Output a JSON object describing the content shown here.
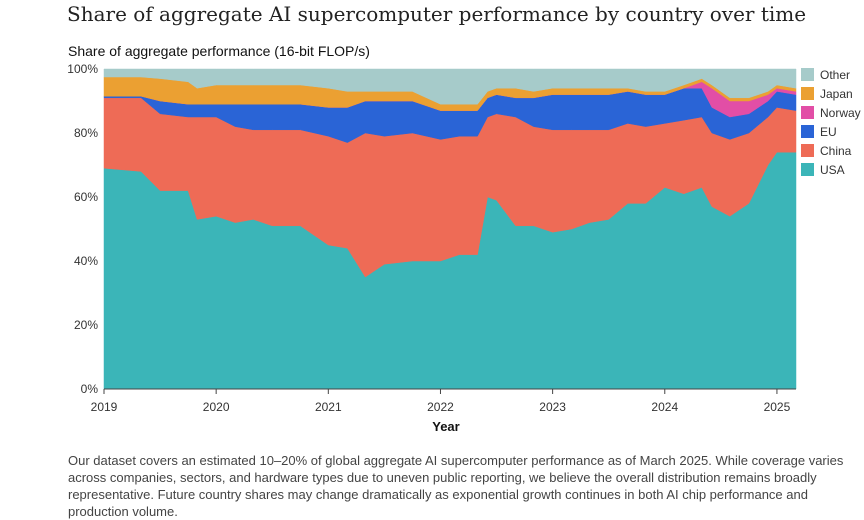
{
  "title": "Share of aggregate AI supercomputer performance by country over time",
  "caption": "Our dataset covers an estimated 10–20% of global aggregate AI supercomputer performance as of March 2025. While coverage varies across companies, sectors, and hardware types due to uneven public reporting, we believe the overall distribution remains broadly representative. Future country shares may change dramatically as exponential growth continues in both AI chip performance and production volume.",
  "chart_data": {
    "type": "area",
    "stacked": true,
    "title": "Share of aggregate performance (16-bit FLOP/s)",
    "xlabel": "Year",
    "ylabel": "",
    "xlim": [
      2019.0,
      2025.17
    ],
    "ylim": [
      0,
      100
    ],
    "x_ticks": [
      2019,
      2020,
      2021,
      2022,
      2023,
      2024,
      2025
    ],
    "x_tick_labels": [
      "2019",
      "2020",
      "2021",
      "2022",
      "2023",
      "2024",
      "2025"
    ],
    "y_ticks": [
      0,
      20,
      40,
      60,
      80,
      100
    ],
    "y_tick_labels": [
      "0%",
      "20%",
      "40%",
      "60%",
      "80%",
      "100%"
    ],
    "legend_position": "right",
    "x": [
      2019.0,
      2019.33,
      2019.5,
      2019.75,
      2019.83,
      2020.0,
      2020.17,
      2020.33,
      2020.5,
      2020.75,
      2021.0,
      2021.17,
      2021.33,
      2021.5,
      2021.75,
      2022.0,
      2022.17,
      2022.33,
      2022.42,
      2022.5,
      2022.67,
      2022.83,
      2023.0,
      2023.17,
      2023.33,
      2023.5,
      2023.67,
      2023.83,
      2024.0,
      2024.17,
      2024.33,
      2024.42,
      2024.58,
      2024.75,
      2024.92,
      2025.0,
      2025.17
    ],
    "series": [
      {
        "name": "USA",
        "color": "#3bb5b8",
        "values": [
          69,
          68,
          62,
          62,
          53,
          54,
          52,
          53,
          51,
          51,
          45,
          44,
          35,
          39,
          40,
          40,
          42,
          42,
          60,
          59,
          51,
          51,
          49,
          50,
          52,
          53,
          58,
          58,
          63,
          61,
          63,
          57,
          54,
          58,
          70,
          74,
          74
        ]
      },
      {
        "name": "China",
        "color": "#ee6b56",
        "values": [
          22,
          23,
          24,
          23,
          32,
          31,
          30,
          28,
          30,
          30,
          34,
          33,
          45,
          40,
          40,
          38,
          37,
          37,
          25,
          27,
          34,
          31,
          32,
          31,
          29,
          28,
          25,
          24,
          20,
          23,
          22,
          23,
          24,
          22,
          15,
          14,
          13
        ]
      },
      {
        "name": "EU",
        "color": "#2a64d6",
        "values": [
          0.5,
          0.5,
          4,
          4,
          4,
          4,
          7,
          8,
          8,
          8,
          9,
          11,
          10,
          11,
          10,
          9,
          8,
          8,
          6,
          6,
          6,
          9,
          11,
          11,
          11,
          11,
          10,
          10,
          9,
          10,
          9,
          8,
          7,
          6,
          5,
          5,
          5
        ]
      },
      {
        "name": "Norway",
        "color": "#e24ea6",
        "values": [
          0,
          0,
          0,
          0,
          0,
          0,
          0,
          0,
          0,
          0,
          0,
          0,
          0,
          0,
          0,
          0,
          0,
          0,
          0,
          0,
          0,
          0,
          0,
          0,
          0,
          0,
          0,
          0,
          0,
          0,
          2,
          6,
          5,
          4,
          2,
          1,
          1
        ]
      },
      {
        "name": "Japan",
        "color": "#eba032",
        "values": [
          6,
          6,
          7,
          7,
          5,
          6,
          6,
          6,
          6,
          6,
          6,
          5,
          3,
          3,
          3,
          2,
          2,
          2,
          2,
          2,
          3,
          2,
          2,
          2,
          2,
          2,
          1,
          1,
          1,
          1,
          1,
          1,
          1,
          1,
          1,
          1,
          1
        ]
      },
      {
        "name": "Other",
        "color": "#a6cbca",
        "values": [
          2.5,
          2.5,
          3,
          4,
          6,
          5,
          5,
          5,
          5,
          5,
          6,
          7,
          7,
          7,
          7,
          11,
          11,
          11,
          7,
          6,
          6,
          7,
          6,
          6,
          6,
          6,
          6,
          7,
          7,
          5,
          3,
          5,
          9,
          9,
          7,
          5,
          6
        ]
      }
    ],
    "legend_order": [
      "Other",
      "Japan",
      "Norway",
      "EU",
      "China",
      "USA"
    ]
  }
}
